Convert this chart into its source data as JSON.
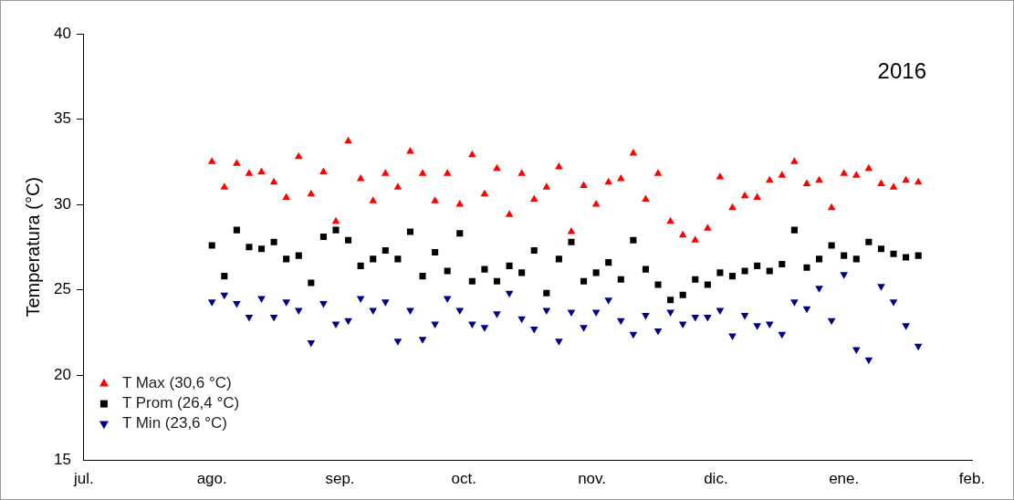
{
  "chart_data": {
    "type": "scatter",
    "ylabel": "Temperatura (°C)",
    "annotations": [
      "2016"
    ],
    "x": [
      "2016-08-01",
      "2016-08-04",
      "2016-08-07",
      "2016-08-10",
      "2016-08-13",
      "2016-08-16",
      "2016-08-19",
      "2016-08-22",
      "2016-08-25",
      "2016-08-28",
      "2016-08-31",
      "2016-09-03",
      "2016-09-06",
      "2016-09-09",
      "2016-09-12",
      "2016-09-15",
      "2016-09-18",
      "2016-09-21",
      "2016-09-24",
      "2016-09-27",
      "2016-09-30",
      "2016-10-03",
      "2016-10-06",
      "2016-10-09",
      "2016-10-12",
      "2016-10-15",
      "2016-10-18",
      "2016-10-21",
      "2016-10-24",
      "2016-10-27",
      "2016-10-30",
      "2016-11-02",
      "2016-11-05",
      "2016-11-08",
      "2016-11-11",
      "2016-11-14",
      "2016-11-17",
      "2016-11-20",
      "2016-11-23",
      "2016-11-26",
      "2016-11-29",
      "2016-12-02",
      "2016-12-05",
      "2016-12-08",
      "2016-12-11",
      "2016-12-14",
      "2016-12-17",
      "2016-12-20",
      "2016-12-23",
      "2016-12-26",
      "2016-12-29",
      "2017-01-01",
      "2017-01-04",
      "2017-01-07",
      "2017-01-10",
      "2017-01-13",
      "2017-01-16",
      "2017-01-19"
    ],
    "series": [
      {
        "name": "T Max (30,6 °C)",
        "color": "#ff0000",
        "marker": "triangle",
        "values": [
          32.5,
          31.0,
          32.4,
          31.8,
          31.9,
          31.3,
          30.4,
          32.8,
          30.6,
          31.9,
          29.0,
          33.7,
          31.5,
          30.2,
          31.8,
          31.0,
          33.1,
          31.8,
          30.2,
          31.8,
          30.0,
          32.9,
          30.6,
          32.1,
          29.4,
          31.8,
          30.3,
          31.0,
          32.2,
          28.4,
          31.1,
          30.0,
          31.3,
          31.5,
          33.0,
          30.3,
          31.8,
          29.0,
          28.2,
          27.9,
          28.6,
          31.6,
          29.8,
          30.5,
          30.4,
          31.4,
          31.7,
          32.5,
          31.2,
          31.4,
          29.8,
          31.8,
          31.7,
          32.1,
          31.2,
          31.0,
          31.4,
          31.3
        ]
      },
      {
        "name": "T Prom (26,4 °C)",
        "color": "#000000",
        "marker": "square",
        "values": [
          27.6,
          25.8,
          28.5,
          27.5,
          27.4,
          27.8,
          26.8,
          27.0,
          25.4,
          28.1,
          28.5,
          27.9,
          26.4,
          26.8,
          27.3,
          26.8,
          28.4,
          25.8,
          27.2,
          26.1,
          28.3,
          25.5,
          26.2,
          25.5,
          26.4,
          26.0,
          27.3,
          24.8,
          26.8,
          27.8,
          25.5,
          26.0,
          26.6,
          25.6,
          27.9,
          26.2,
          25.3,
          24.4,
          24.7,
          25.6,
          25.3,
          26.0,
          25.8,
          26.1,
          26.4,
          26.1,
          26.5,
          28.5,
          26.3,
          26.8,
          27.6,
          27.0,
          26.8,
          27.8,
          27.4,
          27.1,
          26.9,
          27.0
        ]
      },
      {
        "name": "T Min (23,6 °C)",
        "color": "#00008b",
        "marker": "triangle-down",
        "values": [
          24.3,
          24.7,
          24.2,
          23.4,
          24.5,
          23.4,
          24.3,
          23.8,
          21.9,
          24.2,
          23.0,
          23.2,
          24.5,
          23.8,
          24.3,
          22.0,
          23.8,
          22.1,
          23.0,
          24.5,
          23.8,
          23.0,
          22.8,
          23.6,
          24.8,
          23.3,
          22.7,
          23.8,
          22.0,
          23.7,
          22.8,
          23.7,
          24.4,
          23.2,
          22.4,
          23.5,
          22.6,
          23.7,
          23.0,
          23.4,
          23.4,
          23.8,
          22.3,
          23.5,
          22.9,
          23.0,
          22.4,
          24.3,
          23.9,
          25.1,
          23.2,
          25.9,
          21.5,
          20.9,
          25.2,
          24.3,
          22.9,
          21.7
        ]
      }
    ],
    "xlim": [
      "2016-07-01",
      "2017-02-01"
    ],
    "xticks": [
      {
        "value": "2016-07-01",
        "label": "jul."
      },
      {
        "value": "2016-08-01",
        "label": "ago."
      },
      {
        "value": "2016-09-01",
        "label": "sep."
      },
      {
        "value": "2016-10-01",
        "label": "oct."
      },
      {
        "value": "2016-11-01",
        "label": "nov."
      },
      {
        "value": "2016-12-01",
        "label": "dic."
      },
      {
        "value": "2017-01-01",
        "label": "ene."
      },
      {
        "value": "2017-02-01",
        "label": "feb."
      }
    ],
    "ylim": [
      15,
      40
    ],
    "yticks": [
      15,
      20,
      25,
      30,
      35,
      40
    ],
    "grid": false,
    "legend": "bottom left"
  }
}
